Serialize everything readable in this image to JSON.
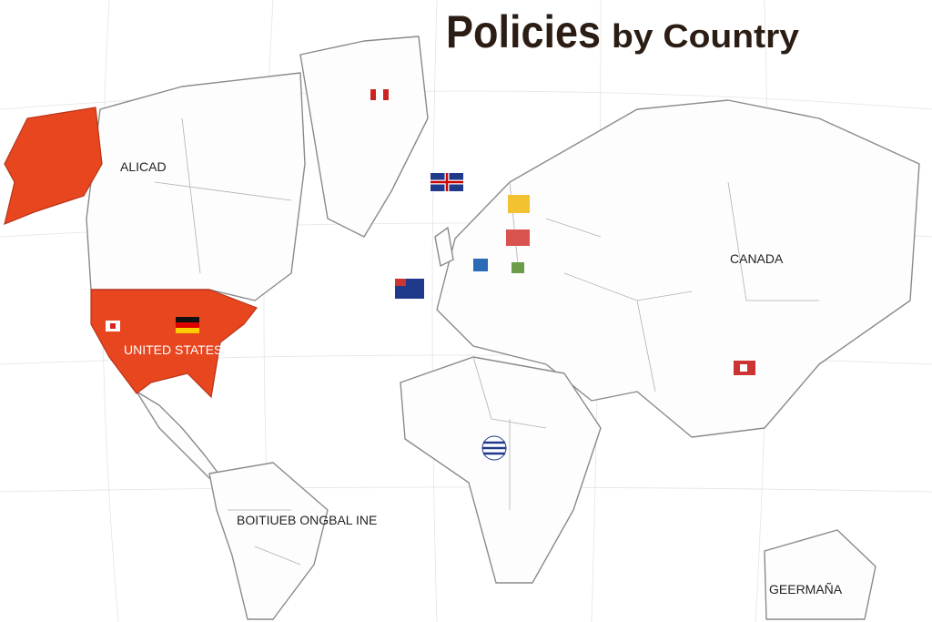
{
  "header": {
    "title": "Policies",
    "subtitle": "by Country"
  },
  "labels": [
    {
      "text": "UNITED STATES"
    },
    {
      "text": "CANADA"
    },
    {
      "text": "GEERMAÑA"
    },
    {
      "text": "BOITIUEB ONGBAL INE"
    },
    {
      "text": "ALICAD"
    }
  ]
}
